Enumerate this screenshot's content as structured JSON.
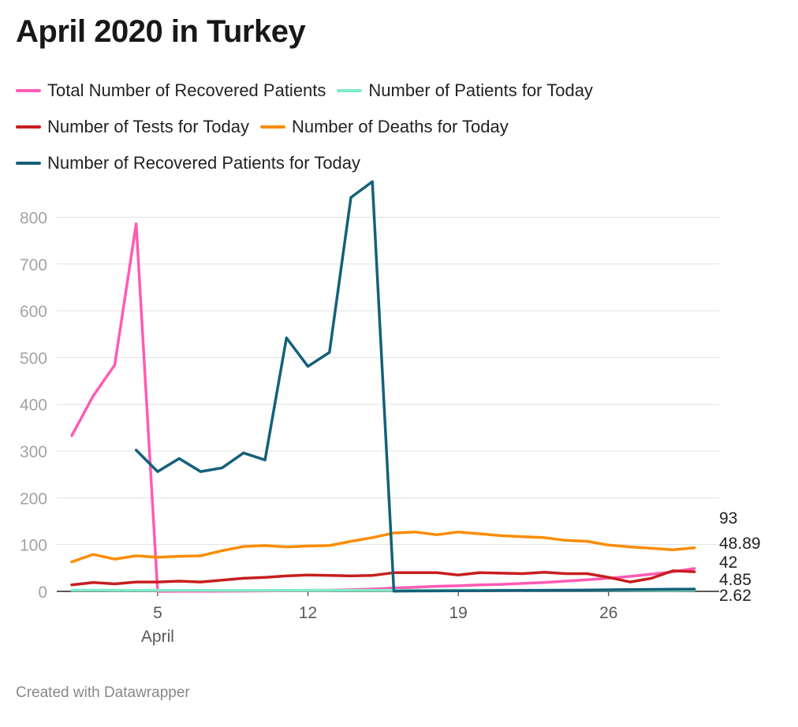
{
  "title": "April 2020 in Turkey",
  "footer": "Created with Datawrapper",
  "legend": {
    "rows": [
      [
        {
          "label": "Total Number of Recovered Patients",
          "color": "#ff5ab4"
        },
        {
          "label": "Number of Patients for Today",
          "color": "#7eecc8"
        }
      ],
      [
        {
          "label": "Number of Tests for Today",
          "color": "#c71e1d"
        },
        {
          "label": "Number of Deaths for Today",
          "color": "#fa8c00"
        }
      ],
      [
        {
          "label": "Number of Recovered Patients for Today",
          "color": "#15607a"
        }
      ]
    ]
  },
  "chart_data": {
    "type": "line",
    "title": "April 2020 in Turkey",
    "xlabel": "",
    "ylabel": "",
    "x_range": [
      1,
      30
    ],
    "ylim": [
      0,
      880
    ],
    "y_ticks": [
      0,
      100,
      200,
      300,
      400,
      500,
      600,
      700,
      800
    ],
    "x_ticks": [
      {
        "day": 5,
        "label": "5",
        "sublabel": "April"
      },
      {
        "day": 12,
        "label": "12"
      },
      {
        "day": 19,
        "label": "19"
      },
      {
        "day": 26,
        "label": "26"
      }
    ],
    "grid": true,
    "legend_position": "top",
    "end_labels": [
      "93",
      "48.89",
      "42",
      "4.85",
      "2.62"
    ],
    "series": [
      {
        "name": "Total Number of Recovered Patients",
        "color": "#ff5ab4",
        "x": [
          1,
          2,
          3,
          4,
          5,
          6,
          7,
          8,
          9,
          10,
          11,
          12,
          13,
          14,
          15,
          16,
          17,
          18,
          19,
          20,
          21,
          22,
          23,
          24,
          25,
          26,
          27,
          28,
          29,
          30
        ],
        "values": [
          333,
          418,
          484,
          786,
          0.05,
          0.1,
          0.2,
          0.3,
          0.6,
          1,
          1.5,
          2,
          2.5,
          3.5,
          5,
          7,
          9,
          11,
          12,
          14,
          15,
          17,
          19,
          22,
          25,
          28,
          32,
          37,
          42,
          48.89
        ]
      },
      {
        "name": "Number of Patients for Today",
        "color": "#7eecc8",
        "x": [
          1,
          2,
          3,
          4,
          5,
          6,
          7,
          8,
          9,
          10,
          11,
          12,
          13,
          14,
          15,
          16,
          17,
          18,
          19,
          20,
          21,
          22,
          23,
          24,
          25,
          26,
          27,
          28,
          29,
          30
        ],
        "values": [
          2.5,
          2.5,
          2.4,
          2.4,
          2.4,
          2.3,
          2.3,
          2.2,
          2.2,
          2.2,
          2.3,
          2.3,
          2.4,
          2.4,
          2.4,
          2.4,
          2.4,
          2.5,
          2.5,
          2.5,
          2.5,
          2.5,
          2.5,
          2.6,
          2.6,
          2.6,
          2.6,
          2.6,
          2.6,
          2.62
        ]
      },
      {
        "name": "Number of Tests for Today",
        "color": "#c71e1d",
        "x": [
          1,
          2,
          3,
          4,
          5,
          6,
          7,
          8,
          9,
          10,
          11,
          12,
          13,
          14,
          15,
          16,
          17,
          18,
          19,
          20,
          21,
          22,
          23,
          24,
          25,
          26,
          27,
          28,
          29,
          30
        ],
        "values": [
          14,
          19,
          16,
          20,
          20,
          22,
          20,
          24,
          28,
          30,
          33,
          35,
          34,
          33,
          34,
          40,
          40,
          40,
          35,
          40,
          39,
          38,
          41,
          38,
          38,
          30,
          20,
          28,
          44,
          42
        ]
      },
      {
        "name": "Number of Deaths for Today",
        "color": "#fa8c00",
        "x": [
          1,
          2,
          3,
          4,
          5,
          6,
          7,
          8,
          9,
          10,
          11,
          12,
          13,
          14,
          15,
          16,
          17,
          18,
          19,
          20,
          21,
          22,
          23,
          24,
          25,
          26,
          27,
          28,
          29,
          30
        ],
        "values": [
          63,
          79,
          69,
          76,
          73,
          75,
          76,
          87,
          96,
          98,
          95,
          97,
          98,
          107,
          115,
          125,
          127,
          121,
          127,
          123,
          119,
          117,
          115,
          109,
          107,
          99,
          95,
          92,
          89,
          93
        ]
      },
      {
        "name": "Number of Recovered Patients for Today",
        "color": "#15607a",
        "x": [
          4,
          5,
          6,
          7,
          8,
          9,
          10,
          11,
          12,
          13,
          14,
          15,
          16,
          17,
          18,
          19,
          20,
          21,
          22,
          23,
          24,
          25,
          26,
          27,
          28,
          29,
          30
        ],
        "values": [
          302,
          256,
          284,
          256,
          264,
          296,
          281,
          542,
          481,
          511,
          842,
          876,
          0.5,
          0.8,
          1,
          1.2,
          1.5,
          1.8,
          2,
          2.3,
          2.6,
          3,
          3.3,
          3.8,
          4.2,
          4.5,
          4.85
        ]
      }
    ]
  }
}
